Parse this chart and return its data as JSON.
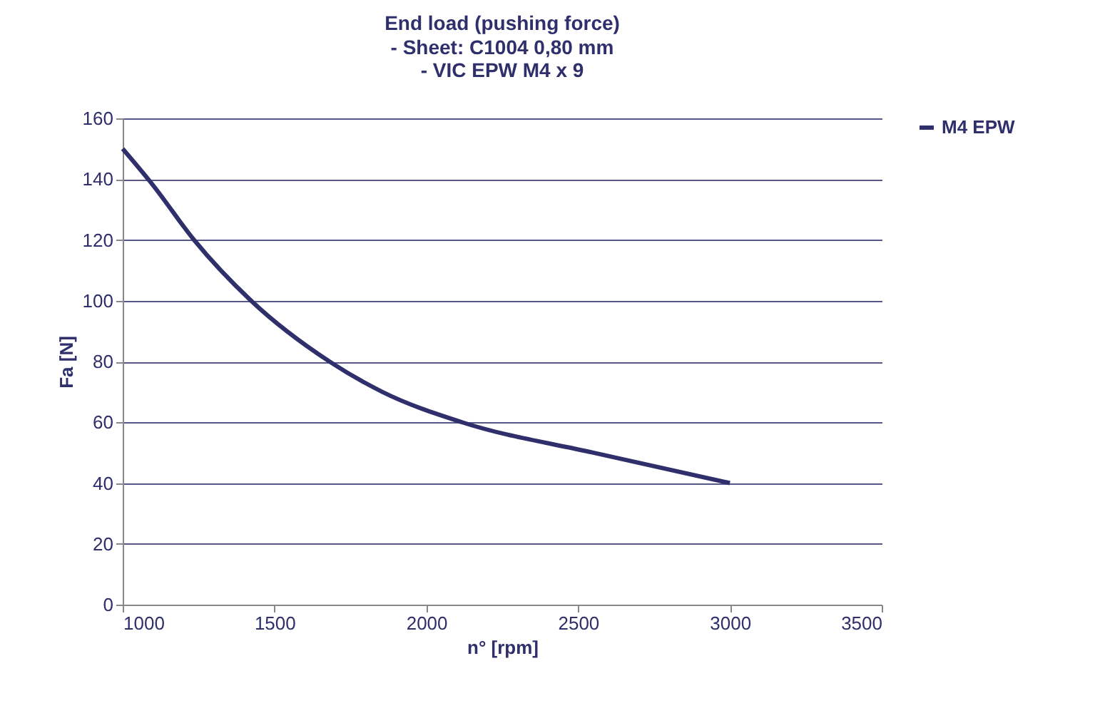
{
  "chart_data": {
    "type": "line",
    "title": "End load (pushing force)",
    "subtitle": "- Sheet: C1004 0,80 mm\n- VIC EPW M4 x 9",
    "xlabel": "n° [rpm]",
    "ylabel": "Fa [N]",
    "series": [
      {
        "name": "M4 EPW",
        "color": "#2e2f6b",
        "x": [
          1000,
          1100,
          1235,
          1423,
          1681,
          1855,
          2118,
          2550,
          3000
        ],
        "values": [
          150,
          138,
          120,
          100,
          80,
          70,
          60,
          50,
          40
        ]
      }
    ],
    "xlim": [
      1000,
      3500
    ],
    "xticks": [
      1000,
      1500,
      2000,
      2500,
      3000,
      3500
    ],
    "ylim": [
      0,
      160
    ],
    "yticks": [
      0,
      20,
      40,
      60,
      80,
      100,
      120,
      140,
      160
    ],
    "grid": "y",
    "legend": "right",
    "marker": "none",
    "line_style": "solid"
  }
}
